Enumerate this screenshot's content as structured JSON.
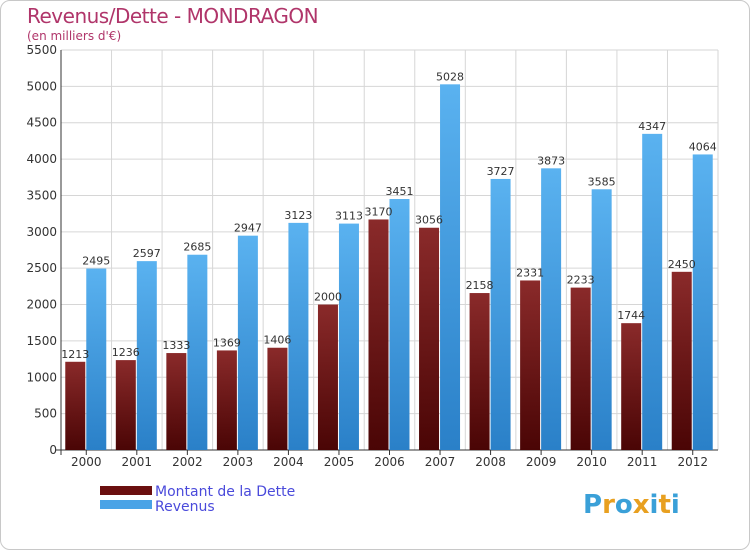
{
  "header": {
    "title": "Revenus/Dette - MONDRAGON",
    "subtitle": "(en milliers d'€)"
  },
  "chart_data": {
    "type": "bar",
    "title": "Revenus/Dette - MONDRAGON",
    "ylabel": "(en milliers d'€)",
    "categories": [
      "2000",
      "2001",
      "2002",
      "2003",
      "2004",
      "2005",
      "2006",
      "2007",
      "2008",
      "2009",
      "2010",
      "2011",
      "2012"
    ],
    "series": [
      {
        "name": "Montant de la Dette",
        "color": "#7a1a1a",
        "values": [
          1213,
          1236,
          1333,
          1369,
          1406,
          2000,
          3170,
          3056,
          2158,
          2331,
          2233,
          1744,
          2450
        ]
      },
      {
        "name": "Revenus",
        "color": "#4aa3e6",
        "values": [
          2495,
          2597,
          2685,
          2947,
          3123,
          3113,
          3451,
          5028,
          3727,
          3873,
          3585,
          4347,
          4064
        ]
      }
    ],
    "ylim": [
      0,
      5500
    ],
    "yticks": [
      0,
      500,
      1000,
      1500,
      2000,
      2500,
      3000,
      3500,
      4000,
      4500,
      5000,
      5500
    ],
    "grid": true,
    "legend": "bottom-left"
  },
  "legend": {
    "items": [
      {
        "label": "Montant de la Dette",
        "color": "#6b0f0f"
      },
      {
        "label": "Revenus",
        "color": "#4aa3e6"
      }
    ]
  },
  "logo": {
    "letters": [
      "P",
      "r",
      "o",
      "x",
      "i",
      "t",
      "i"
    ],
    "colors": [
      "#3aa0d8",
      "#e8a020",
      "#3aa0d8",
      "#e8a020",
      "#3aa0d8",
      "#e8a020",
      "#3aa0d8"
    ]
  }
}
